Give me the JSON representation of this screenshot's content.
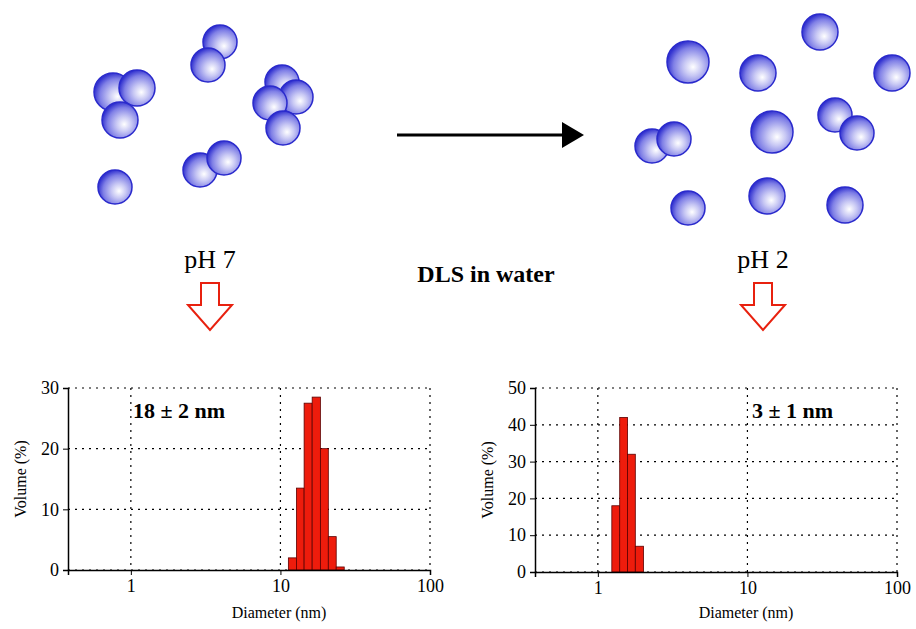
{
  "diagram": {
    "left_label": "pH 7",
    "center_label": "DLS in water",
    "right_label": "pH 2"
  },
  "chart_data": [
    {
      "type": "histogram",
      "annotation": "18 ± 2 nm",
      "x_label": "Diameter (nm)",
      "y_label": "Volume (%)",
      "bins": [
        11.3,
        12.8,
        14.4,
        16.3,
        18.5,
        20.9,
        23.6,
        26.7
      ],
      "values": [
        2,
        13.5,
        27.5,
        28.5,
        20,
        5.5,
        0.5
      ],
      "color": "#ee1c0c",
      "xlim": [
        0.38,
        100
      ],
      "xticks": [
        1,
        10,
        100
      ],
      "ylim": [
        0,
        30
      ],
      "yticks": [
        0,
        10,
        20,
        30
      ],
      "log": "x",
      "grid": true
    },
    {
      "type": "histogram",
      "annotation": "3 ± 1 nm",
      "x_label": "Diameter (nm)",
      "y_label": "Volume (%)",
      "bins": [
        1.24,
        1.4,
        1.58,
        1.78,
        2.02
      ],
      "values": [
        18,
        42,
        32,
        7
      ],
      "color": "#ee1c0c",
      "xlim": [
        0.38,
        100
      ],
      "xticks": [
        1,
        10,
        100
      ],
      "ylim": [
        0,
        50
      ],
      "yticks": [
        0,
        10,
        20,
        30,
        40,
        50
      ],
      "log": "x",
      "grid": true
    }
  ]
}
